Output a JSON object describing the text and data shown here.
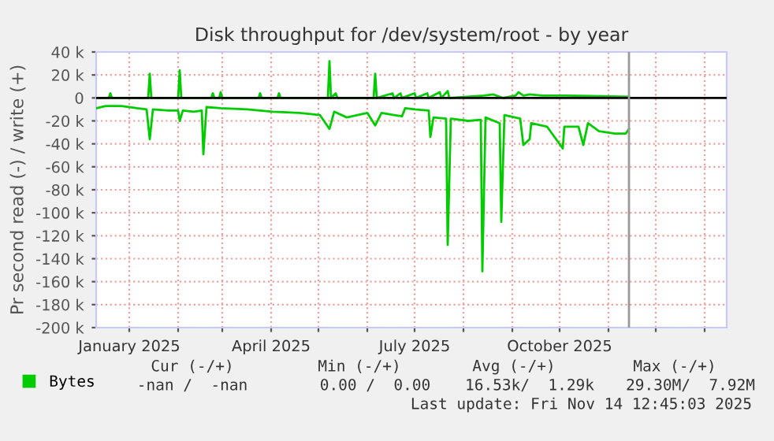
{
  "chart_data": {
    "type": "line",
    "title": "Disk throughput for /dev/system/root - by year",
    "ylabel": "Pr second read (-) / write (+)",
    "xlim": [
      "2024-12-11",
      "2026-01-15"
    ],
    "ylim": [
      -200000,
      40000
    ],
    "xticks": [
      {
        "value": "2025-01-01",
        "label": "January 2025"
      },
      {
        "value": "2025-02-01",
        "label": null
      },
      {
        "value": "2025-03-01",
        "label": null
      },
      {
        "value": "2025-04-01",
        "label": "April 2025"
      },
      {
        "value": "2025-05-01",
        "label": null
      },
      {
        "value": "2025-06-01",
        "label": null
      },
      {
        "value": "2025-07-01",
        "label": "July 2025"
      },
      {
        "value": "2025-08-01",
        "label": null
      },
      {
        "value": "2025-09-01",
        "label": null
      },
      {
        "value": "2025-10-01",
        "label": "October 2025"
      },
      {
        "value": "2025-11-01",
        "label": null
      },
      {
        "value": "2025-12-01",
        "label": null
      },
      {
        "value": "2026-01-01",
        "label": null
      }
    ],
    "yticks": [
      {
        "value": -200000,
        "label": "-200 k"
      },
      {
        "value": -180000,
        "label": "-180 k"
      },
      {
        "value": -160000,
        "label": "-160 k"
      },
      {
        "value": -140000,
        "label": "-140 k"
      },
      {
        "value": -120000,
        "label": "-120 k"
      },
      {
        "value": -100000,
        "label": "-100 k"
      },
      {
        "value": -80000,
        "label": "-80 k"
      },
      {
        "value": -60000,
        "label": "-60 k"
      },
      {
        "value": -40000,
        "label": "-40 k"
      },
      {
        "value": -20000,
        "label": "-20 k"
      },
      0,
      {
        "value": 20000,
        "label": "20 k"
      },
      {
        "value": 40000,
        "label": "40 k"
      }
    ],
    "grid": true,
    "legend": "bottom",
    "marker": "none",
    "line_style": "solid",
    "ref_lines": [
      {
        "axis": "y",
        "value": 0,
        "label": null,
        "color": "#000000"
      },
      {
        "axis": "x",
        "value": "2025-11-14",
        "label": null,
        "color": "#999999"
      }
    ],
    "series": [
      {
        "name": "Bytes",
        "color": "#00cc00",
        "x": [
          "2024-12-11",
          "2024-12-17",
          "2024-12-27",
          "2025-01-06",
          "2025-01-12",
          "2025-01-14",
          "2025-01-16",
          "2025-01-26",
          "2025-02-01",
          "2025-02-02",
          "2025-02-04",
          "2025-02-11",
          "2025-02-16",
          "2025-02-17",
          "2025-02-19",
          "2025-02-28",
          "2025-03-17",
          "2025-04-02",
          "2025-04-19",
          "2025-05-02",
          "2025-05-08",
          "2025-05-11",
          "2025-05-19",
          "2025-06-01",
          "2025-06-06",
          "2025-06-10",
          "2025-06-18",
          "2025-06-23",
          "2025-06-25",
          "2025-07-01",
          "2025-07-10",
          "2025-07-11",
          "2025-07-13",
          "2025-07-21",
          "2025-07-22",
          "2025-07-24",
          "2025-08-04",
          "2025-08-12",
          "2025-08-13",
          "2025-08-15",
          "2025-08-24",
          "2025-08-25",
          "2025-08-27",
          "2025-09-06",
          "2025-09-08",
          "2025-09-12",
          "2025-09-13",
          "2025-09-23",
          "2025-10-03",
          "2025-10-04",
          "2025-10-13",
          "2025-10-16",
          "2025-10-19",
          "2025-10-26",
          "2025-11-05",
          "2025-11-12",
          "2025-11-14"
        ],
        "values": [
          -9000,
          -7000,
          -7000,
          -9000,
          -10000,
          -36000,
          -10000,
          -11000,
          -11000,
          -20000,
          -11000,
          -12000,
          -11000,
          -49000,
          -8000,
          -9000,
          -10000,
          -12000,
          -13000,
          -15000,
          -27000,
          -12000,
          -17000,
          -13000,
          -24000,
          -13000,
          -15000,
          -16000,
          -9000,
          -10000,
          -11000,
          -34000,
          -17000,
          -18000,
          -128000,
          -18000,
          -20000,
          -19000,
          -151000,
          -17000,
          -22000,
          -108000,
          -15000,
          -18000,
          -41000,
          -36000,
          -22000,
          -25000,
          -44000,
          -25000,
          -25000,
          -41000,
          -22000,
          -29000,
          -31000,
          -31000,
          -27000
        ]
      },
      {
        "color": "#00cc00",
        "x": [
          "2024-12-11",
          "2024-12-19",
          "2024-12-20",
          "2024-12-21",
          "2025-01-13",
          "2025-01-14",
          "2025-01-15",
          "2025-02-01",
          "2025-02-02",
          "2025-02-03",
          "2025-02-22",
          "2025-02-23",
          "2025-02-24",
          "2025-02-27",
          "2025-02-28",
          "2025-03-01",
          "2025-03-24",
          "2025-03-25",
          "2025-03-26",
          "2025-04-05",
          "2025-04-06",
          "2025-04-07",
          "2025-05-07",
          "2025-05-08",
          "2025-05-09",
          "2025-05-12",
          "2025-05-13",
          "2025-06-05",
          "2025-06-06",
          "2025-06-07",
          "2025-06-17",
          "2025-06-18",
          "2025-06-22",
          "2025-06-23",
          "2025-07-01",
          "2025-07-02",
          "2025-07-09",
          "2025-07-10",
          "2025-07-17",
          "2025-07-18",
          "2025-07-22",
          "2025-07-23",
          "2025-08-14",
          "2025-08-20",
          "2025-08-26",
          "2025-09-03",
          "2025-09-05",
          "2025-09-08",
          "2025-09-12",
          "2025-09-20",
          "2025-10-01",
          "2025-10-05",
          "2025-11-14"
        ],
        "values": [
          0,
          0,
          4000,
          0,
          0,
          21000,
          0,
          0,
          24000,
          0,
          0,
          4000,
          0,
          0,
          5000,
          0,
          0,
          4000,
          0,
          0,
          4000,
          0,
          0,
          32000,
          0,
          4000,
          0,
          0,
          21000,
          0,
          4000,
          0,
          4000,
          0,
          4000,
          0,
          4000,
          0,
          5000,
          0,
          6000,
          0,
          2000,
          3000,
          0,
          2000,
          5000,
          2000,
          3000,
          2000,
          2000,
          2000,
          1000
        ]
      }
    ],
    "annotations": [
      "Cur (-/+)",
      "Min (-/+)",
      "Avg (-/+)",
      "Max (-/+)",
      "-nan /  -nan",
      "0.00 /  0.00",
      "16.53k/  1.29k",
      "29.30M/  7.92M",
      "Last update: Fri Nov 14 12:45:03 2025"
    ]
  }
}
